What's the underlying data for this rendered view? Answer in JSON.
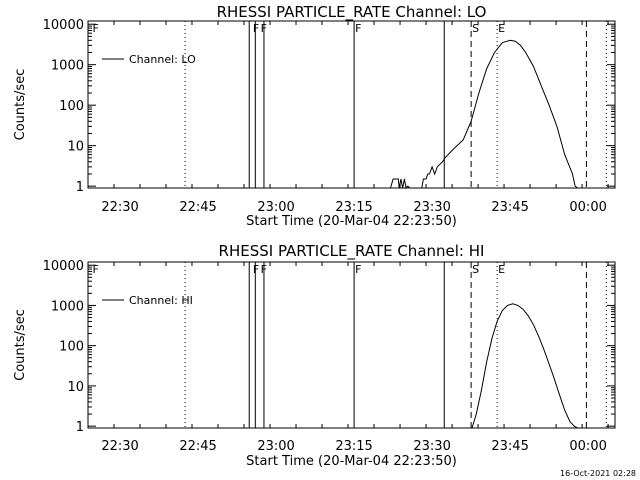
{
  "stamp": "16-Oct-2021 02:28",
  "chart_data": [
    {
      "type": "line",
      "title": "RHESSI PARTICLE_RATE Channel: LO",
      "xlabel": "Start Time (20-Mar-04 22:23:50)",
      "ylabel": "Counts/sec",
      "yscale": "log",
      "ylim": [
        0.9,
        12000
      ],
      "xlim": [
        "22:23:50",
        "00:05:10"
      ],
      "x_ticks": [
        "22:30",
        "22:45",
        "23:00",
        "23:15",
        "23:30",
        "23:45",
        "00:00"
      ],
      "y_ticks": [
        "1",
        "10",
        "100",
        "1000",
        "10000"
      ],
      "legend": {
        "label": "Channel: LO",
        "position": "top-left"
      },
      "flags": [
        {
          "label": "F",
          "time": "22:24:30"
        },
        {
          "label": "F",
          "time": "22:55:20"
        },
        {
          "label": "F",
          "time": "22:56:50"
        },
        {
          "label": "F",
          "time": "23:15:00"
        },
        {
          "label": "S",
          "time": "23:37:30"
        },
        {
          "label": "E",
          "time": "23:42:30"
        }
      ],
      "dotted_lines": [
        "22:42:30",
        "23:42:30",
        "00:03:30"
      ],
      "dashed_lines": [
        "23:37:30",
        "23:59:40"
      ],
      "spikes": [
        "22:54:50",
        "22:56:00",
        "22:57:40",
        "23:15:00",
        "23:32:20"
      ],
      "series": [
        {
          "x": [
            "22:23:50",
            "23:12:00",
            "23:22:00",
            "23:22:30",
            "23:23:30",
            "23:23:40",
            "23:24:00",
            "23:24:20",
            "23:24:40",
            "23:25:00",
            "23:25:20",
            "23:25:40",
            "23:26:00",
            "23:28:00",
            "23:28:20",
            "23:28:50",
            "23:29:10",
            "23:29:30",
            "23:30:00",
            "23:30:30",
            "23:31:00",
            "23:32:00",
            "23:32:30",
            "23:34:00",
            "23:36:00",
            "23:37:30",
            "23:39:00",
            "23:40:30",
            "23:42:00",
            "23:43:30",
            "23:45:00",
            "23:46:00",
            "23:47:00",
            "23:48:00",
            "23:49:30",
            "23:51:00",
            "23:52:30",
            "23:54:00",
            "23:55:30",
            "23:57:00",
            "23:57:30",
            "23:58:00"
          ],
          "values": [
            0.9,
            0.9,
            0.9,
            1.5,
            1.5,
            0.9,
            1.5,
            0.9,
            1.5,
            0.9,
            1.0,
            0.9,
            0.9,
            0.9,
            1.5,
            1.5,
            2.0,
            2.0,
            3.0,
            2.0,
            3.0,
            4.0,
            5.0,
            8.0,
            14.0,
            40.0,
            200.0,
            800.0,
            2000.0,
            3500.0,
            4000.0,
            3800.0,
            3000.0,
            2000.0,
            900.0,
            300.0,
            100.0,
            30.0,
            6.0,
            2.0,
            1.0,
            0.9
          ]
        }
      ]
    },
    {
      "type": "line",
      "title": "RHESSI PARTICLE_RATE Channel: HI",
      "xlabel": "Start Time (20-Mar-04 22:23:50)",
      "ylabel": "Counts/sec",
      "yscale": "log",
      "ylim": [
        0.9,
        12000
      ],
      "xlim": [
        "22:23:50",
        "00:05:10"
      ],
      "x_ticks": [
        "22:30",
        "22:45",
        "23:00",
        "23:15",
        "23:30",
        "23:45",
        "00:00"
      ],
      "y_ticks": [
        "1",
        "10",
        "100",
        "1000",
        "10000"
      ],
      "legend": {
        "label": "Channel: HI",
        "position": "top-left"
      },
      "flags": [
        {
          "label": "F",
          "time": "22:24:30"
        },
        {
          "label": "F",
          "time": "22:55:20"
        },
        {
          "label": "F",
          "time": "22:56:50"
        },
        {
          "label": "F",
          "time": "23:15:00"
        },
        {
          "label": "S",
          "time": "23:37:30"
        },
        {
          "label": "E",
          "time": "23:42:30"
        }
      ],
      "dotted_lines": [
        "22:42:30",
        "23:42:30",
        "00:03:30"
      ],
      "dashed_lines": [
        "23:37:30",
        "23:59:40"
      ],
      "spikes": [
        "22:54:50",
        "22:56:00",
        "22:57:40",
        "23:15:00",
        "23:32:20"
      ],
      "series": [
        {
          "x": [
            "23:37:40",
            "23:38:30",
            "23:39:30",
            "23:40:30",
            "23:41:30",
            "23:42:30",
            "23:43:30",
            "23:44:30",
            "23:45:30",
            "23:46:30",
            "23:47:30",
            "23:48:30",
            "23:49:30",
            "23:50:30",
            "23:51:30",
            "23:52:30",
            "23:53:30",
            "23:54:30",
            "23:55:30",
            "23:56:30",
            "23:57:20",
            "23:58:00"
          ],
          "values": [
            0.9,
            2.0,
            8.0,
            40.0,
            150.0,
            400.0,
            750.0,
            1000.0,
            1100.0,
            1000.0,
            800.0,
            550.0,
            330.0,
            170.0,
            80.0,
            35.0,
            15.0,
            6.0,
            2.5,
            1.3,
            1.0,
            0.9
          ]
        }
      ]
    }
  ]
}
